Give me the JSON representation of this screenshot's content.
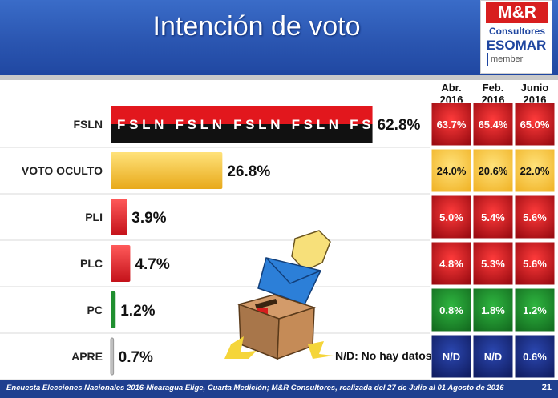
{
  "header": {
    "title": "Intención de voto"
  },
  "logo": {
    "brand": "M&R",
    "consultores": "Consultores",
    "esomar": "ESOMAR",
    "member": "member"
  },
  "chart_data": {
    "type": "bar",
    "orientation": "horizontal",
    "title": "Intención de voto",
    "categories": [
      "FSLN",
      "VOTO OCULTO",
      "PLI",
      "PLC",
      "PC",
      "APRE"
    ],
    "values": [
      62.8,
      26.8,
      3.9,
      4.7,
      1.2,
      0.7
    ],
    "value_labels": [
      "62.8%",
      "26.8%",
      "3.9%",
      "4.7%",
      "1.2%",
      "0.7%"
    ],
    "bar_text": "FSLN   FSLN   FSLN   FSLN   FS",
    "xlim": [
      0,
      100
    ],
    "colors": [
      "#e2171d",
      "#f5c531",
      "#e31b23",
      "#d6151c",
      "#1f8f2f",
      "#bfbfbf"
    ],
    "comparison_table": {
      "headers": [
        [
          "Abr.",
          "2016"
        ],
        [
          "Feb.",
          "2016"
        ],
        [
          "Junio",
          "2016"
        ]
      ],
      "rows": [
        [
          "63.7%",
          "65.4%",
          "65.0%"
        ],
        [
          "24.0%",
          "20.6%",
          "22.0%"
        ],
        [
          "5.0%",
          "5.4%",
          "5.6%"
        ],
        [
          "4.8%",
          "5.3%",
          "5.6%"
        ],
        [
          "0.8%",
          "1.8%",
          "1.2%"
        ],
        [
          "N/D",
          "N/D",
          "0.6%"
        ]
      ],
      "row_colors": [
        "#c8141a",
        "#f5c531",
        "#d3121a",
        "#d3121a",
        "#1c8a2c",
        "#1d2f8a"
      ]
    }
  },
  "note": "N/D: No hay datos",
  "footer": {
    "source": "Encuesta Elecciones Nacionales 2016-Nicaragua Elige, Cuarta Medición; M&R Consultores, realizada del 27 de Julio al 01 Agosto de 2016",
    "page": "21"
  }
}
